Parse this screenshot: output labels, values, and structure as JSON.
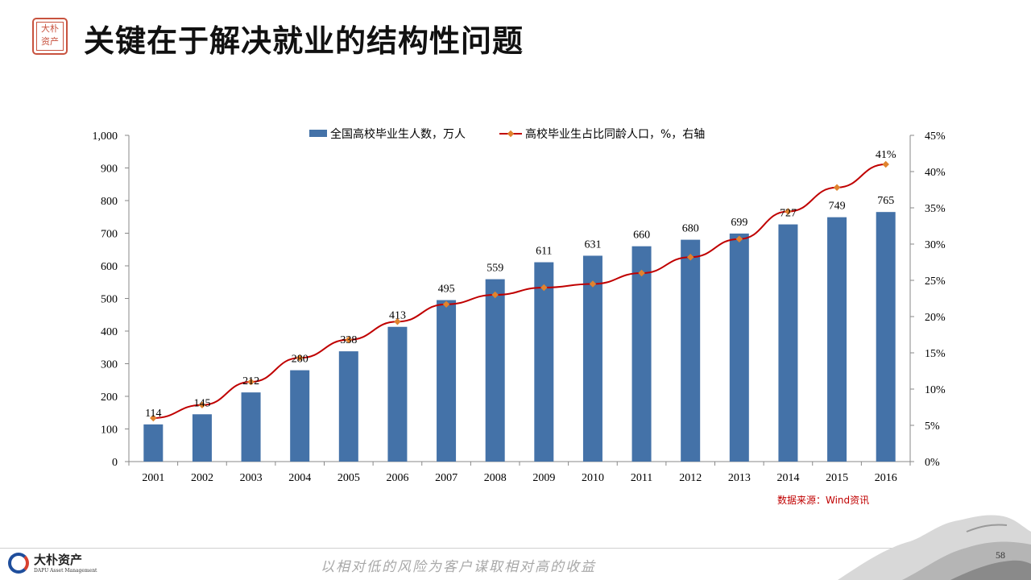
{
  "header": {
    "seal_text": "大朴资产",
    "title": "关键在于解决就业的结构性问题"
  },
  "chart_data": {
    "type": "bar",
    "categories": [
      "2001",
      "2002",
      "2003",
      "2004",
      "2005",
      "2006",
      "2007",
      "2008",
      "2009",
      "2010",
      "2011",
      "2012",
      "2013",
      "2014",
      "2015",
      "2016"
    ],
    "series": [
      {
        "name": "全国高校毕业生人数，万人",
        "type": "bar",
        "axis": "left",
        "values": [
          114,
          145,
          212,
          280,
          338,
          413,
          495,
          559,
          611,
          631,
          660,
          680,
          699,
          727,
          749,
          765
        ]
      },
      {
        "name": "高校毕业生占比同龄人口，%，右轴",
        "type": "line",
        "axis": "right",
        "values": [
          6,
          7.8,
          11,
          14.3,
          16.8,
          19.3,
          21.7,
          23,
          24,
          24.5,
          26,
          28.2,
          30.7,
          34.5,
          37.8,
          41
        ]
      }
    ],
    "data_labels_shown": {
      "index": 15,
      "text": "41%"
    },
    "y_left": {
      "min": 0,
      "max": 1000,
      "step": 100,
      "ticks": [
        "0",
        "100",
        "200",
        "300",
        "400",
        "500",
        "600",
        "700",
        "800",
        "900",
        "1,000"
      ]
    },
    "y_right": {
      "min": 0,
      "max": 45,
      "step": 5,
      "ticks": [
        "0%",
        "5%",
        "10%",
        "15%",
        "20%",
        "25%",
        "30%",
        "35%",
        "40%",
        "45%"
      ]
    },
    "legend_position": "top-center",
    "grid": false,
    "colors": {
      "bar": "#4472a8",
      "line": "#c00000",
      "marker": "#e0832e"
    }
  },
  "source": "数据来源：Wind资讯",
  "footer": {
    "brand": "大朴资产",
    "brand_en": "DAPU Asset Management",
    "slogan": "以相对低的风险为客户谋取相对高的收益",
    "page_number": "58"
  }
}
